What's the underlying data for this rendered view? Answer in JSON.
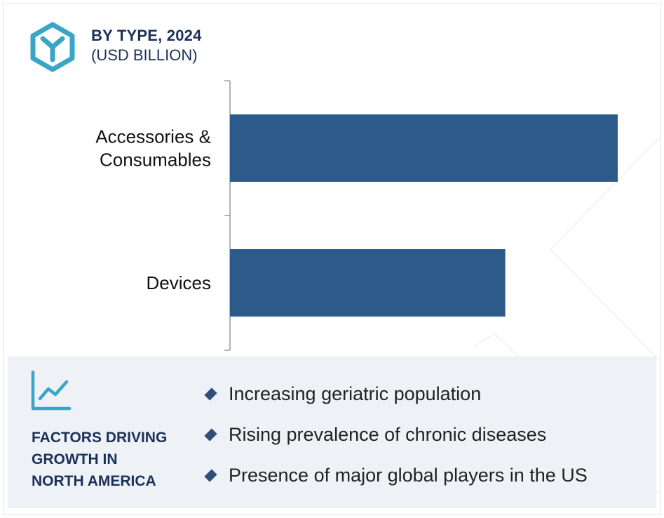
{
  "header": {
    "title": "BY TYPE, 2024",
    "subtitle": "(USD BILLION)"
  },
  "colors": {
    "bar": "#2c5b8a",
    "logo": "#3aa6c6",
    "heading": "#1b3158",
    "panel": "#eef1f6"
  },
  "chart_data": {
    "type": "bar",
    "orientation": "horizontal",
    "categories": [
      "Accessories & Consumables",
      "Devices"
    ],
    "category_lines": [
      [
        "Accessories &",
        "Consumables"
      ],
      [
        "Devices"
      ]
    ],
    "values": [
      10.0,
      7.1
    ],
    "xlim": [
      0,
      10.0
    ],
    "title": "BY TYPE, 2024",
    "subtitle": "(USD BILLION)",
    "grid": false,
    "legend": "none"
  },
  "factors": {
    "heading_lines": [
      "FACTORS DRIVING",
      "GROWTH IN",
      "NORTH AMERICA"
    ],
    "items": [
      "Increasing geriatric population",
      "Rising prevalence of chronic diseases",
      "Presence of major global players in the US"
    ]
  },
  "icons": {
    "logo": "cube-y-logo",
    "trend": "trend-chart-icon",
    "bullet": "diamond-bullet-icon"
  }
}
